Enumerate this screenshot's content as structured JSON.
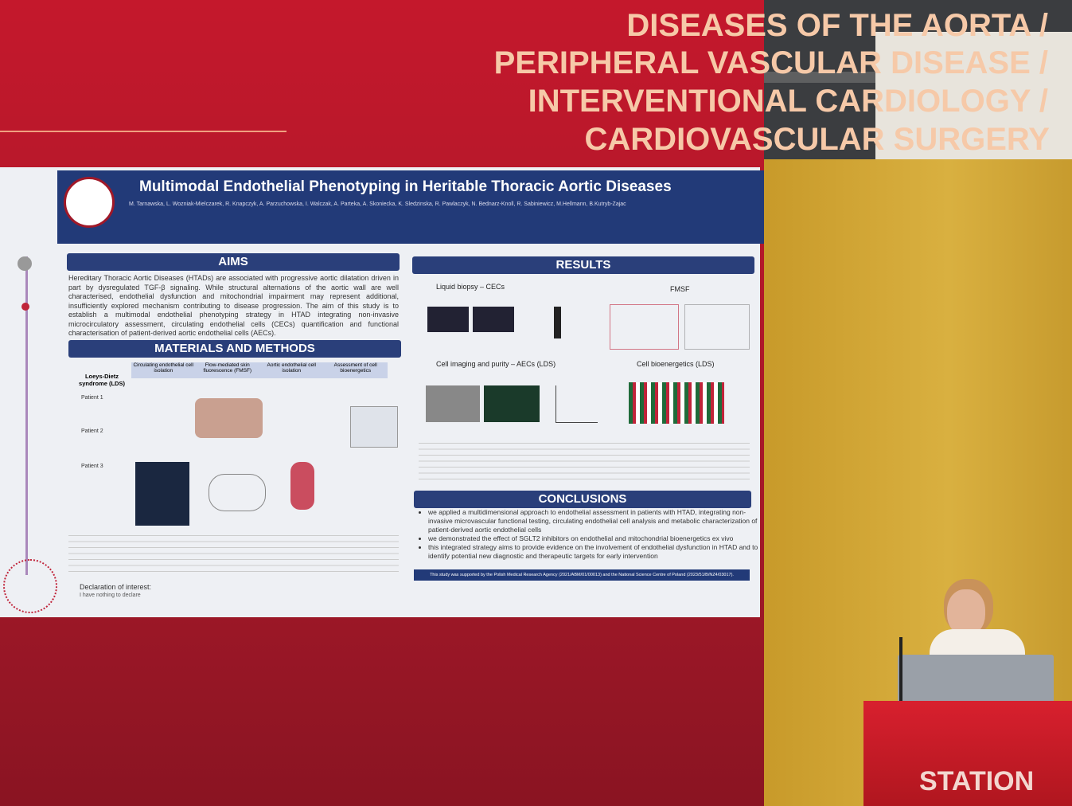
{
  "banner": {
    "lines": [
      "DISEASES OF THE AORTA /",
      "PERIPHERAL VASCULAR DISEASE /",
      "INTERVENTIONAL CARDIOLOGY /",
      "CARDIOVASCULAR SURGERY"
    ]
  },
  "poster": {
    "title": "Multimodal Endothelial Phenotyping in Heritable Thoracic Aortic Diseases",
    "authors": "M. Tarnawska, L. Wozniak-Mielczarek, R. Knapczyk, A. Parzuchowska, I. Walczak, A. Parteka, A. Skoniecka, K. Sledzinska, R. Pawlaczyk, N. Bednarz-Knoll, R. Sabiniewicz, M.Hellmann, B.Kutryb-Zajac",
    "aims": {
      "heading": "AIMS",
      "text": "Hereditary Thoracic Aortic Diseases (HTADs) are associated with progressive aortic dilatation driven in part by dysregulated TGF-β signaling. While structural alternations of the aortic wall are well characterised, endothelial dysfunction and mitochondrial impairment may represent additional, insufficiently explored mechanism contributing to disease progression. The aim of this study is to establish a multimodal endothelial phenotyping strategy in HTAD integrating non-invasive microcirculatory assessment, circulating endothelial cells (CECs) quantification and functional characterisation of patient-derived aortic endothelial cells (AECs)."
    },
    "methods": {
      "heading": "MATERIALS AND METHODS",
      "columns": [
        "Circulating endothelial cell isolation",
        "Flow-mediated skin fluorescence (FMSF)",
        "Aortic endothelial cell isolation",
        "Assessment of cell bioenergetics"
      ],
      "cohort": "Loeys-Dietz syndrome (LDS)",
      "patients": [
        "Patient 1",
        "Patient 2",
        "Patient 3"
      ]
    },
    "declaration": {
      "heading": "Declaration of interest:",
      "text": "I have nothing to declare"
    },
    "results": {
      "heading": "RESULTS",
      "panels": [
        "Liquid biopsy – CECs",
        "FMSF",
        "Cell imaging and purity – AECs (LDS)",
        "Cell bioenergetics (LDS)"
      ]
    },
    "conclusions": {
      "heading": "CONCLUSIONS",
      "bullets": [
        "we applied a multidimensional approach to endothelial assessment in patients with HTAD, integrating non-invasive microvascular functional testing, circulating endothelial cell analysis and metabolic characterization of patient-derived aortic endothelial cells",
        "we demonstrated the effect of SGLT2 inhibitors on endothelial and mitochondrial bioenergetics ex vivo",
        "this integrated strategy aims to provide evidence on the involvement of endothelial dysfunction in HTAD and to identify potential new diagnostic and therapeutic targets for early intervention"
      ]
    },
    "funding": "This study was supported by the Polish Medical Research Agency (2021/ABM/01/00013) and the National Science Centre of Poland (2023/51/B/NZ4/03017)."
  },
  "podium": {
    "label": "STATION"
  }
}
